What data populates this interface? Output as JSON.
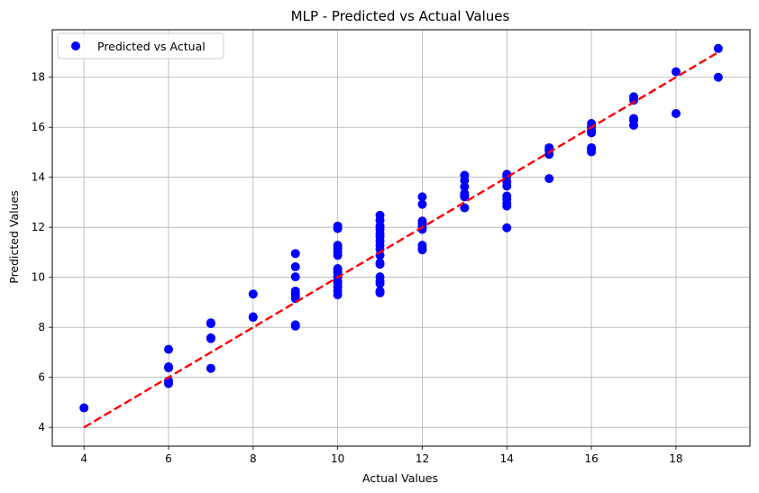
{
  "chart_data": {
    "type": "scatter",
    "title": "MLP - Predicted vs Actual Values",
    "xlabel": "Actual Values",
    "ylabel": "Predicted Values",
    "xlim": [
      3.25,
      19.75
    ],
    "ylim": [
      3.25,
      19.9
    ],
    "x_ticks": [
      4,
      6,
      8,
      10,
      12,
      14,
      16,
      18
    ],
    "y_ticks": [
      4,
      6,
      8,
      10,
      12,
      14,
      16,
      18
    ],
    "grid": true,
    "legend_position": "upper-left",
    "series": [
      {
        "name": "Predicted vs Actual",
        "color": "#0000ff",
        "marker": "circle",
        "points": [
          [
            4,
            4.78
          ],
          [
            6,
            7.12
          ],
          [
            6,
            6.42
          ],
          [
            6,
            6.38
          ],
          [
            6,
            5.86
          ],
          [
            6,
            5.75
          ],
          [
            7,
            8.18
          ],
          [
            7,
            8.15
          ],
          [
            7,
            7.58
          ],
          [
            7,
            7.55
          ],
          [
            7,
            6.36
          ],
          [
            8,
            9.33
          ],
          [
            8,
            8.42
          ],
          [
            8,
            8.4
          ],
          [
            9,
            10.95
          ],
          [
            9,
            10.42
          ],
          [
            9,
            10.02
          ],
          [
            9,
            9.45
          ],
          [
            9,
            9.35
          ],
          [
            9,
            9.25
          ],
          [
            9,
            9.15
          ],
          [
            9,
            8.1
          ],
          [
            9,
            8.05
          ],
          [
            10,
            12.05
          ],
          [
            10,
            11.95
          ],
          [
            10,
            11.28
          ],
          [
            10,
            11.15
          ],
          [
            10,
            11.02
          ],
          [
            10,
            10.88
          ],
          [
            10,
            10.35
          ],
          [
            10,
            10.25
          ],
          [
            10,
            10.18
          ],
          [
            10,
            10.02
          ],
          [
            10,
            9.85
          ],
          [
            10,
            9.78
          ],
          [
            10,
            9.62
          ],
          [
            10,
            9.45
          ],
          [
            10,
            9.3
          ],
          [
            11,
            12.48
          ],
          [
            11,
            12.28
          ],
          [
            11,
            12.05
          ],
          [
            11,
            11.92
          ],
          [
            11,
            11.75
          ],
          [
            11,
            11.62
          ],
          [
            11,
            11.45
          ],
          [
            11,
            11.28
          ],
          [
            11,
            11.12
          ],
          [
            11,
            10.88
          ],
          [
            11,
            10.58
          ],
          [
            11,
            10.52
          ],
          [
            11,
            10.02
          ],
          [
            11,
            9.85
          ],
          [
            11,
            9.75
          ],
          [
            11,
            9.45
          ],
          [
            11,
            9.38
          ],
          [
            12,
            13.22
          ],
          [
            12,
            12.92
          ],
          [
            12,
            12.25
          ],
          [
            12,
            12.15
          ],
          [
            12,
            12.02
          ],
          [
            12,
            11.92
          ],
          [
            12,
            11.28
          ],
          [
            12,
            11.15
          ],
          [
            12,
            11.1
          ],
          [
            13,
            14.08
          ],
          [
            13,
            13.88
          ],
          [
            13,
            13.62
          ],
          [
            13,
            13.35
          ],
          [
            13,
            13.28
          ],
          [
            13,
            13.22
          ],
          [
            13,
            12.78
          ],
          [
            14,
            14.12
          ],
          [
            14,
            14.05
          ],
          [
            14,
            13.82
          ],
          [
            14,
            13.65
          ],
          [
            14,
            13.25
          ],
          [
            14,
            13.12
          ],
          [
            14,
            12.95
          ],
          [
            14,
            12.85
          ],
          [
            14,
            11.98
          ],
          [
            15,
            15.18
          ],
          [
            15,
            15.08
          ],
          [
            15,
            14.92
          ],
          [
            15,
            13.95
          ],
          [
            16,
            16.15
          ],
          [
            16,
            16.02
          ],
          [
            16,
            15.88
          ],
          [
            16,
            15.78
          ],
          [
            16,
            15.18
          ],
          [
            16,
            15.12
          ],
          [
            16,
            15.02
          ],
          [
            17,
            17.22
          ],
          [
            17,
            17.08
          ],
          [
            17,
            16.35
          ],
          [
            17,
            16.28
          ],
          [
            17,
            16.08
          ],
          [
            18,
            18.22
          ],
          [
            18,
            16.55
          ],
          [
            19,
            19.15
          ],
          [
            19,
            18.0
          ]
        ]
      }
    ],
    "reference_line": {
      "from": [
        4,
        4
      ],
      "to": [
        19,
        19
      ],
      "color": "#ff0000",
      "style": "dashed"
    }
  }
}
